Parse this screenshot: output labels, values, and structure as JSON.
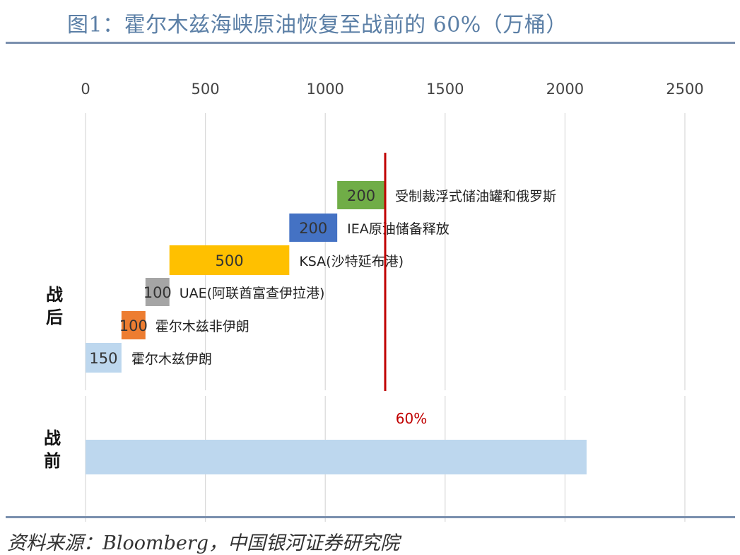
{
  "title": "图1：霍尔木兹海峡原油恢复至战前的 60%（万桶）",
  "source": "资料来源：Bloomberg，中国银河证券研究院",
  "colors": {
    "title": "#5b7fa6",
    "gridline": "#d9d9d9",
    "reference_line": "#c00000",
    "label_text": "#222222"
  },
  "chart_data": {
    "type": "bar",
    "orientation": "horizontal",
    "stacked": "waterfall",
    "xlim": [
      0,
      2500
    ],
    "xticks": [
      0,
      500,
      1000,
      1500,
      2000,
      2500
    ],
    "x_axis_position": "top",
    "grid": true,
    "categories": [
      "战后",
      "战前"
    ],
    "post_war_segments": [
      {
        "name": "霍尔木兹伊朗",
        "value": 150,
        "start": 0,
        "color": "#bdd7ee"
      },
      {
        "name": "霍尔木兹非伊朗",
        "value": 100,
        "start": 150,
        "color": "#ed7d31"
      },
      {
        "name": "UAE(阿联酋富查伊拉港)",
        "value": 100,
        "start": 250,
        "color": "#a5a5a5"
      },
      {
        "name": "KSA(沙特延布港)",
        "value": 500,
        "start": 350,
        "color": "#ffc000"
      },
      {
        "name": "IEA原油储备释放",
        "value": 200,
        "start": 850,
        "color": "#4472c4"
      },
      {
        "name": "受制裁浮式储油罐和俄罗斯",
        "value": 200,
        "start": 1050,
        "color": "#70ad47"
      }
    ],
    "pre_war": {
      "value": 2090,
      "color": "#bdd7ee"
    },
    "reference_line": {
      "x": 1250,
      "label": "60%"
    }
  }
}
